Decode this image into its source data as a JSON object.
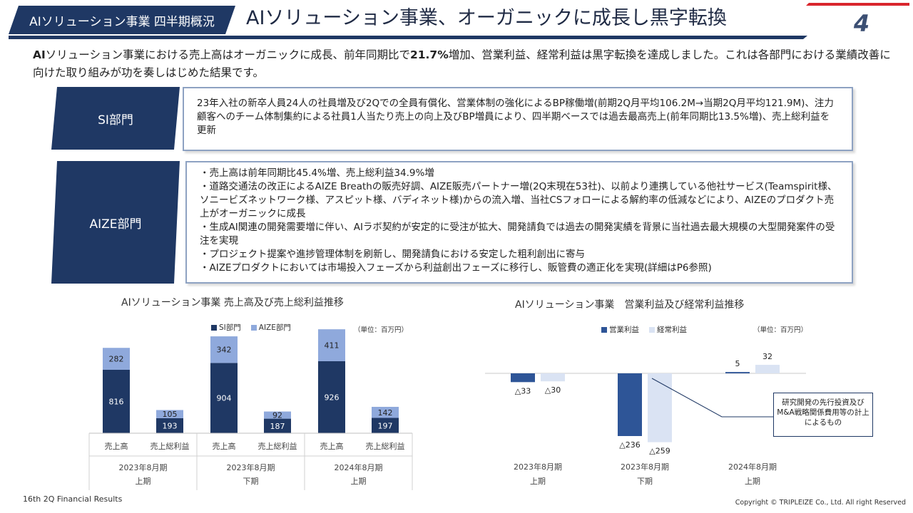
{
  "header": {
    "section_tag": "AIソリューション事業 四半期概況",
    "title": "AIソリューション事業、オーガニックに成長し黒字転換",
    "page_number": "4"
  },
  "lead": {
    "prefix": "AI",
    "part1": "ソリューション事業における売上高はオーガニックに成長、前年同期比で",
    "highlight": "21.7%",
    "part2": "増加、営業利益、経常利益は黒字転換を達成しました。これは各部門における業績改善に向けた取り組みが功を奏しはじめた結果です。"
  },
  "departments": [
    {
      "label": "SI部門",
      "lines": [
        "23年入社の新卒人員24人の社員増及び2Qでの全員有償化、営業体制の強化によるBP稼働増(前期2Q月平均106.2M→当期2Q月平均121.9M)、注力顧客へのチーム体制集約による社員1人当たり売上の向上及びBP増員により、四半期ベースでは過去最高売上(前年同期比13.5%増)、売上総利益を更新"
      ]
    },
    {
      "label": "AIZE部門",
      "lines": [
        "・売上高は前年同期比45.4%増、売上総利益34.9%増",
        "・道路交通法の改正によるAIZE Breathの販売好調、AIZE販売パートナー増(2Q末現在53社)、以前より連携している他社サービス(Teamspirit様、ソニービズネットワーク様、アスピット様、バディネット様)からの流入増、当社CSフォローによる解約率の低減などにより、AIZEのプロダクト売上がオーガニックに成長",
        "・生成AI関連の開発需要増に伴い、AIラボ契約が安定的に受注が拡大、開発請負では過去の開発実績を背景に当社過去最大規模の大型開発案件の受注を実現",
        "・プロジェクト提案や進捗管理体制を刷新し、開発請負における安定した粗利創出に寄与",
        "・AIZEプロダクトにおいては市場投入フェーズから利益創出フェーズに移行し、販管費の適正化を実現(詳細はP6参照)"
      ]
    }
  ],
  "chart_data": [
    {
      "type": "bar",
      "stacked": true,
      "title": "AIソリューション事業 売上高及び売上総利益推移",
      "unit_label": "（単位：百万円）",
      "legend_position": "top",
      "categories": [
        "売上高",
        "売上総利益",
        "売上高",
        "売上総利益",
        "売上高",
        "売上総利益"
      ],
      "groups": [
        {
          "period": "2023年8月期",
          "half": "上期"
        },
        {
          "period": "2023年8月期",
          "half": "下期"
        },
        {
          "period": "2024年8月期",
          "half": "上期"
        }
      ],
      "series": [
        {
          "name": "SI部門",
          "color": "#1f3864",
          "values": [
            816,
            193,
            904,
            187,
            926,
            197
          ]
        },
        {
          "name": "AIZE部門",
          "color": "#8fa9dc",
          "values": [
            282,
            105,
            342,
            92,
            411,
            142
          ]
        }
      ],
      "ylim": [
        0,
        1400
      ]
    },
    {
      "type": "bar",
      "stacked": false,
      "title": "AIソリューション事業　営業利益及び経常利益推移",
      "unit_label": "（単位：百万円）",
      "legend_position": "top",
      "groups": [
        {
          "period": "2023年8月期",
          "half": "上期"
        },
        {
          "period": "2023年8月期",
          "half": "下期"
        },
        {
          "period": "2024年8月期",
          "half": "上期"
        }
      ],
      "series": [
        {
          "name": "営業利益",
          "color": "#2e5597",
          "values": [
            -33,
            -236,
            5
          ]
        },
        {
          "name": "経常利益",
          "color": "#dae3f3",
          "values": [
            -30,
            -259,
            32
          ]
        }
      ],
      "value_labels": [
        [
          "△33",
          "△236",
          "5"
        ],
        [
          "△30",
          "△259",
          "32"
        ]
      ],
      "annotation": "研究開発の先行投資及びM&A戦略関係費用等の計上によるもの",
      "ylim": [
        -300,
        100
      ]
    }
  ],
  "footer": {
    "left": "16th 2Q Financial Results",
    "right": "Copyright © TRIPLEIZE Co., Ltd.  All right Reserved"
  }
}
